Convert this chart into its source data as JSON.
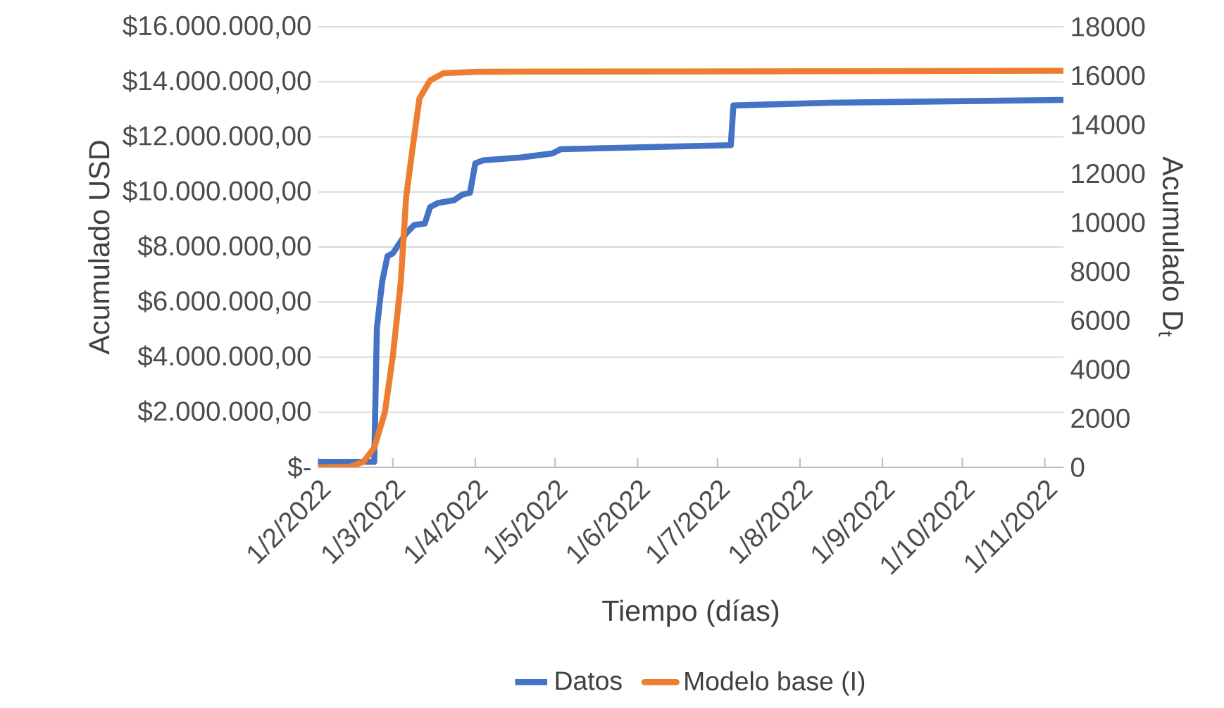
{
  "chart_data": {
    "type": "line",
    "xlabel": "Tiempo (días)",
    "ylabel": "Acumulado USD",
    "y2label": "Acumulado D$_{t}$",
    "xlim": [
      "2022-02-01",
      "2022-11-08"
    ],
    "xticks": [
      {
        "value": "2022-02-01",
        "label": "1/2/2022"
      },
      {
        "value": "2022-03-01",
        "label": "1/3/2022"
      },
      {
        "value": "2022-04-01",
        "label": "1/4/2022"
      },
      {
        "value": "2022-05-01",
        "label": "1/5/2022"
      },
      {
        "value": "2022-06-01",
        "label": "1/6/2022"
      },
      {
        "value": "2022-07-01",
        "label": "1/7/2022"
      },
      {
        "value": "2022-08-01",
        "label": "1/8/2022"
      },
      {
        "value": "2022-09-01",
        "label": "1/9/2022"
      },
      {
        "value": "2022-10-01",
        "label": "1/10/2022"
      },
      {
        "value": "2022-11-01",
        "label": "1/11/2022"
      }
    ],
    "ylim": [
      0,
      16000000
    ],
    "yticks": [
      {
        "value": 0,
        "label": "$-"
      },
      {
        "value": 2000000,
        "label": "$2.000.000,00"
      },
      {
        "value": 4000000,
        "label": "$4.000.000,00"
      },
      {
        "value": 6000000,
        "label": "$6.000.000,00"
      },
      {
        "value": 8000000,
        "label": "$8.000.000,00"
      },
      {
        "value": 10000000,
        "label": "$10.000.000,00"
      },
      {
        "value": 12000000,
        "label": "$12.000.000,00"
      },
      {
        "value": 14000000,
        "label": "$14.000.000,00"
      },
      {
        "value": 16000000,
        "label": "$16.000.000,00"
      }
    ],
    "y2lim": [
      0,
      18000
    ],
    "y2ticks": [
      0,
      2000,
      4000,
      6000,
      8000,
      10000,
      12000,
      14000,
      16000,
      18000
    ],
    "grid": "y",
    "legend": "bottom",
    "marker": "none",
    "line_style": "solid",
    "series": [
      {
        "name": "Datos",
        "color": "#4472c4",
        "x": [
          "2022-02-01",
          "2022-02-22",
          "2022-02-23",
          "2022-02-25",
          "2022-02-27",
          "2022-03-01",
          "2022-03-06",
          "2022-03-09",
          "2022-03-13",
          "2022-03-15",
          "2022-03-18",
          "2022-03-24",
          "2022-03-27",
          "2022-03-30",
          "2022-04-01",
          "2022-04-04",
          "2022-04-18",
          "2022-04-30",
          "2022-05-03",
          "2022-07-06",
          "2022-07-07",
          "2022-08-12",
          "2022-11-08"
        ],
        "values": [
          200000,
          200000,
          5060000,
          6750000,
          7670000,
          7770000,
          8500000,
          8800000,
          8850000,
          9450000,
          9600000,
          9700000,
          9900000,
          9970000,
          11040000,
          11150000,
          11250000,
          11400000,
          11550000,
          11700000,
          13140000,
          13240000,
          13340000
        ]
      },
      {
        "name": "Modelo base (I)",
        "color": "#ed7d31",
        "axis": "y2",
        "x": [
          "2022-02-01",
          "2022-02-13",
          "2022-02-18",
          "2022-02-22",
          "2022-02-26",
          "2022-03-01",
          "2022-03-04",
          "2022-03-06",
          "2022-03-09",
          "2022-03-11",
          "2022-03-15",
          "2022-03-20",
          "2022-04-02",
          "2022-11-08"
        ],
        "values": [
          0,
          20,
          230,
          800,
          2240,
          4540,
          7590,
          11040,
          13510,
          15070,
          15810,
          16100,
          16160,
          16200
        ]
      }
    ]
  }
}
